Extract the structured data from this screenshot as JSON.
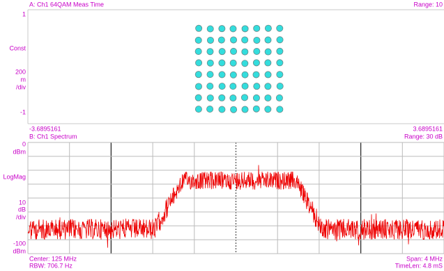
{
  "panel_a": {
    "title": "A: Ch1 64QAM Meas Time",
    "range": "Range: 10",
    "y_labels": [
      "1",
      "Const",
      "200",
      "m",
      "/div",
      "-1"
    ],
    "x_min": "-3.6895161",
    "x_max": "3.6895161"
  },
  "panel_b": {
    "title": "B: Ch1 Spectrum",
    "range": "Range: 30 dB",
    "y_labels": [
      "0",
      "dBm",
      "LogMag",
      "10",
      "dB",
      "/div",
      "-100",
      "dBm"
    ],
    "center": "Center: 125 MHz",
    "span": "Span: 4 MHz",
    "rbw": "RBW: 706.7 Hz",
    "time_len": "TimeLen: 4.8 mS"
  }
}
